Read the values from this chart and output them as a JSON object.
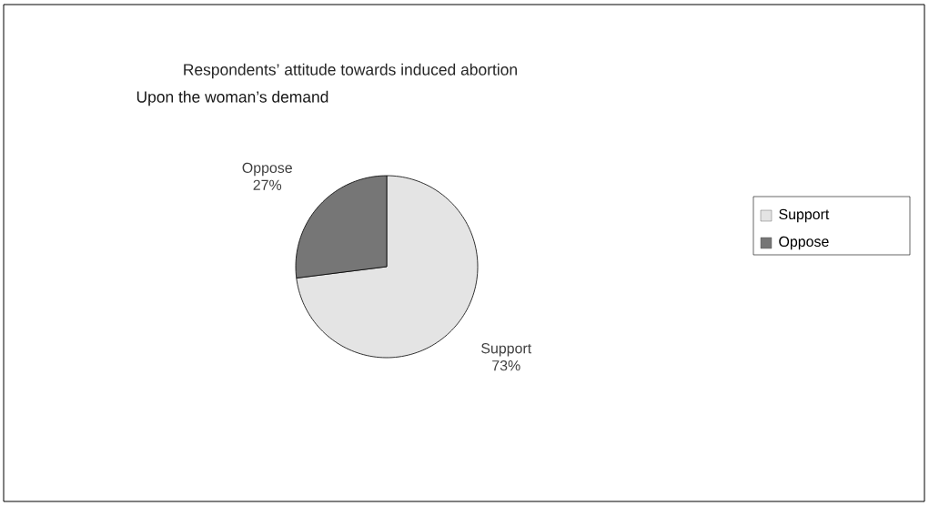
{
  "chart_data": {
    "type": "pie",
    "title": "Respondents’ attitude towards induced abortion",
    "subtitle": "Upon the woman’s demand",
    "categories": [
      "Support",
      "Oppose"
    ],
    "values": [
      73,
      27
    ],
    "colors": [
      "#e4e4e4",
      "#767676"
    ],
    "value_labels": [
      "73%",
      "27%"
    ],
    "legend": "right"
  }
}
